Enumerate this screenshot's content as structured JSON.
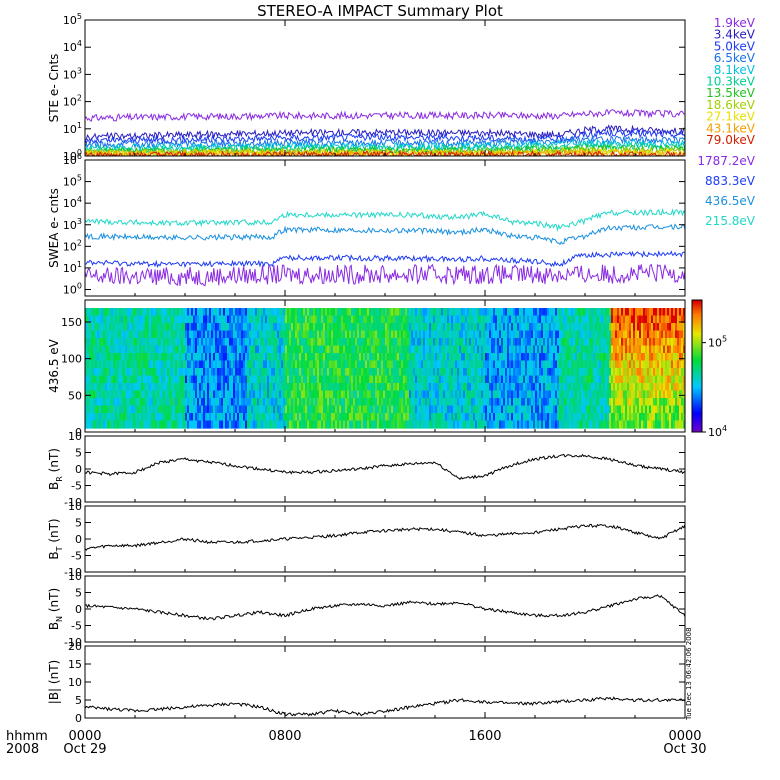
{
  "title": "STEREO-A IMPACT Summary Plot",
  "side_stamp": "Tue Dec 13 06:42:06 2008",
  "time_axis": {
    "row_label_1": "hhmm",
    "row_label_2": "2008",
    "ticks": [
      {
        "t": 0,
        "label": "0000",
        "sub": "Oct 29"
      },
      {
        "t": 8,
        "label": "0800",
        "sub": ""
      },
      {
        "t": 16,
        "label": "1600",
        "sub": ""
      },
      {
        "t": 24,
        "label": "0000",
        "sub": "Oct 30"
      }
    ],
    "range_hours": [
      0,
      24
    ]
  },
  "chart_data": [
    {
      "id": "ste",
      "type": "line",
      "ylabel": "STE e- Cnts",
      "yscale": "log",
      "ylim": [
        1,
        100000
      ],
      "yticks": [
        "10^0",
        "10^1",
        "10^2",
        "10^3",
        "10^4",
        "10^5"
      ],
      "series": [
        {
          "name": "1.9keV",
          "color": "#8a2be2",
          "x": [
            0,
            4,
            8,
            12,
            16,
            19,
            20,
            21,
            24
          ],
          "y": [
            25,
            28,
            30,
            31,
            31,
            30,
            36,
            38,
            35
          ]
        },
        {
          "name": "3.4keV",
          "color": "#2a1fbe",
          "x": [
            0,
            4,
            8,
            12,
            16,
            19,
            20,
            21,
            24
          ],
          "y": [
            5,
            6,
            7,
            7.5,
            7,
            6,
            9,
            10,
            8
          ]
        },
        {
          "name": "5.0keV",
          "color": "#1e3cf5",
          "x": [
            0,
            4,
            8,
            12,
            16,
            19,
            20,
            21,
            24
          ],
          "y": [
            3.5,
            4,
            4.5,
            5,
            4.5,
            4,
            6,
            7,
            6
          ]
        },
        {
          "name": "6.5keV",
          "color": "#1a73e8",
          "x": [
            0,
            8,
            16,
            20,
            24
          ],
          "y": [
            2.6,
            3,
            3,
            4,
            3.8
          ]
        },
        {
          "name": "8.1keV",
          "color": "#00c0e0",
          "x": [
            0,
            8,
            16,
            20,
            24
          ],
          "y": [
            2,
            2.3,
            2.3,
            3,
            2.8
          ]
        },
        {
          "name": "10.3keV",
          "color": "#00d090",
          "x": [
            0,
            8,
            16,
            20,
            24
          ],
          "y": [
            1.7,
            1.9,
            1.9,
            2.4,
            2.2
          ]
        },
        {
          "name": "13.5keV",
          "color": "#22c022",
          "x": [
            0,
            8,
            16,
            20,
            24
          ],
          "y": [
            1.5,
            1.6,
            1.6,
            1.9,
            1.8
          ]
        },
        {
          "name": "18.6keV",
          "color": "#a0d000",
          "x": [
            0,
            8,
            16,
            20,
            24
          ],
          "y": [
            1.35,
            1.4,
            1.4,
            1.6,
            1.5
          ]
        },
        {
          "name": "27.1keV",
          "color": "#e8e000",
          "x": [
            0,
            8,
            16,
            20,
            24
          ],
          "y": [
            1.25,
            1.3,
            1.3,
            1.4,
            1.35
          ]
        },
        {
          "name": "43.1keV",
          "color": "#f5a000",
          "x": [
            0,
            8,
            16,
            20,
            24
          ],
          "y": [
            1.15,
            1.2,
            1.2,
            1.25,
            1.2
          ]
        },
        {
          "name": "79.0keV",
          "color": "#d02000",
          "x": [
            0,
            8,
            16,
            20,
            24
          ],
          "y": [
            1.05,
            1.1,
            1.1,
            1.1,
            1.1
          ]
        }
      ]
    },
    {
      "id": "swea",
      "type": "line",
      "ylabel": "SWEA e- cnts",
      "yscale": "log",
      "ylim": [
        0.5,
        1000000
      ],
      "yticks": [
        "10^0",
        "10^1",
        "10^2",
        "10^3",
        "10^4",
        "10^5",
        "10^6"
      ],
      "series": [
        {
          "name": "1787.2eV",
          "color": "#8a2be2",
          "x": [
            0,
            4,
            8,
            12,
            16,
            20,
            24
          ],
          "y": [
            4,
            4,
            5,
            5,
            5,
            5,
            6
          ]
        },
        {
          "name": "883.3eV",
          "color": "#1e3cf5",
          "x": [
            0,
            3,
            7.5,
            8,
            13,
            15,
            16,
            17,
            18,
            19,
            20,
            24
          ],
          "y": [
            18,
            15,
            16,
            30,
            28,
            25,
            28,
            22,
            20,
            14,
            40,
            45
          ]
        },
        {
          "name": "436.5eV",
          "color": "#1a90e0",
          "x": [
            0,
            3,
            7.5,
            8,
            13,
            15,
            16,
            17,
            18,
            19,
            20,
            21,
            24
          ],
          "y": [
            300,
            250,
            270,
            600,
            550,
            450,
            600,
            300,
            250,
            150,
            300,
            700,
            800
          ]
        },
        {
          "name": "215.8eV",
          "color": "#20d8c8",
          "x": [
            0,
            3,
            7.5,
            8,
            13,
            15,
            16,
            17,
            18,
            19,
            20,
            21,
            24
          ],
          "y": [
            1500,
            1200,
            1300,
            3000,
            2800,
            2200,
            3000,
            1400,
            1200,
            700,
            1500,
            3500,
            3800
          ]
        }
      ]
    },
    {
      "id": "pad",
      "type": "heatmap",
      "ylabel": "436.5 eV",
      "ylim": [
        0,
        180
      ],
      "yticks": [
        0,
        50,
        100,
        150
      ],
      "colorbar": {
        "scale": "log",
        "range": [
          10000,
          300000
        ],
        "ticks": [
          "10^4",
          "10^5"
        ]
      },
      "bands": [
        {
          "t0": 0,
          "t1": 4,
          "level": 0.45
        },
        {
          "t0": 4,
          "t1": 6.5,
          "level": 0.3
        },
        {
          "t0": 6.5,
          "t1": 8,
          "level": 0.4
        },
        {
          "t0": 8,
          "t1": 13,
          "level": 0.55
        },
        {
          "t0": 13,
          "t1": 16,
          "level": 0.4
        },
        {
          "t0": 16,
          "t1": 19,
          "level": 0.32
        },
        {
          "t0": 19,
          "t1": 21,
          "level": 0.45
        },
        {
          "t0": 21,
          "t1": 24,
          "level": 0.6
        }
      ]
    },
    {
      "id": "br",
      "type": "line",
      "ylabel": "B_R (nT)",
      "ylim": [
        -10,
        10
      ],
      "yticks": [
        -10,
        -5,
        0,
        5,
        10
      ],
      "series": [
        {
          "x": [
            0,
            1,
            2,
            3,
            4,
            5,
            6,
            7,
            8,
            9,
            10,
            11,
            12,
            13,
            14,
            15,
            16,
            17,
            18,
            19,
            20,
            21,
            22,
            23,
            24
          ],
          "y": [
            -1,
            -1.5,
            -1,
            2,
            3,
            2,
            1,
            0,
            -1,
            -1,
            -0.5,
            0,
            1,
            1.5,
            2,
            -3,
            -2,
            1,
            3,
            4,
            4,
            3,
            1,
            0,
            -1
          ]
        }
      ]
    },
    {
      "id": "bt",
      "type": "line",
      "ylabel": "B_T (nT)",
      "ylim": [
        -10,
        10
      ],
      "yticks": [
        -10,
        -5,
        0,
        5,
        10
      ],
      "series": [
        {
          "x": [
            0,
            1,
            2,
            3,
            4,
            5,
            6,
            7,
            8,
            9,
            10,
            11,
            12,
            13,
            14,
            15,
            16,
            17,
            18,
            19,
            20,
            21,
            22,
            23,
            24
          ],
          "y": [
            -3,
            -2,
            -2,
            -1,
            0,
            -1,
            -1,
            -0.5,
            0,
            0.5,
            1,
            2,
            2.5,
            3,
            3,
            2,
            1,
            1.5,
            2,
            3,
            4,
            4,
            2,
            0,
            4
          ]
        }
      ]
    },
    {
      "id": "bn",
      "type": "line",
      "ylabel": "B_N (nT)",
      "ylim": [
        -10,
        10
      ],
      "yticks": [
        -10,
        -5,
        0,
        5,
        10
      ],
      "series": [
        {
          "x": [
            0,
            1,
            2,
            3,
            4,
            5,
            6,
            7,
            8,
            9,
            10,
            11,
            12,
            13,
            14,
            15,
            16,
            17,
            18,
            19,
            20,
            21,
            22,
            23,
            24
          ],
          "y": [
            1,
            0.5,
            0,
            -1,
            -2,
            -3,
            -2,
            -1,
            -2,
            0,
            1,
            1.5,
            1,
            2,
            1.5,
            2,
            0,
            -1,
            -2,
            -2,
            -1,
            1,
            3,
            4,
            -2
          ]
        }
      ]
    },
    {
      "id": "bmag",
      "type": "line",
      "ylabel": "|B| (nT)",
      "ylim": [
        0,
        20
      ],
      "yticks": [
        0,
        5,
        10,
        15,
        20
      ],
      "series": [
        {
          "x": [
            0,
            1,
            2,
            3,
            4,
            5,
            6,
            7,
            8,
            9,
            10,
            11,
            12,
            13,
            14,
            15,
            16,
            17,
            18,
            19,
            20,
            21,
            22,
            23,
            24
          ],
          "y": [
            3,
            2.5,
            2,
            2.5,
            3,
            3.5,
            4,
            3,
            1,
            1,
            2,
            1,
            2,
            3,
            4,
            5,
            4.5,
            4,
            4,
            4.5,
            5,
            5.5,
            5,
            5,
            5
          ]
        }
      ]
    }
  ]
}
